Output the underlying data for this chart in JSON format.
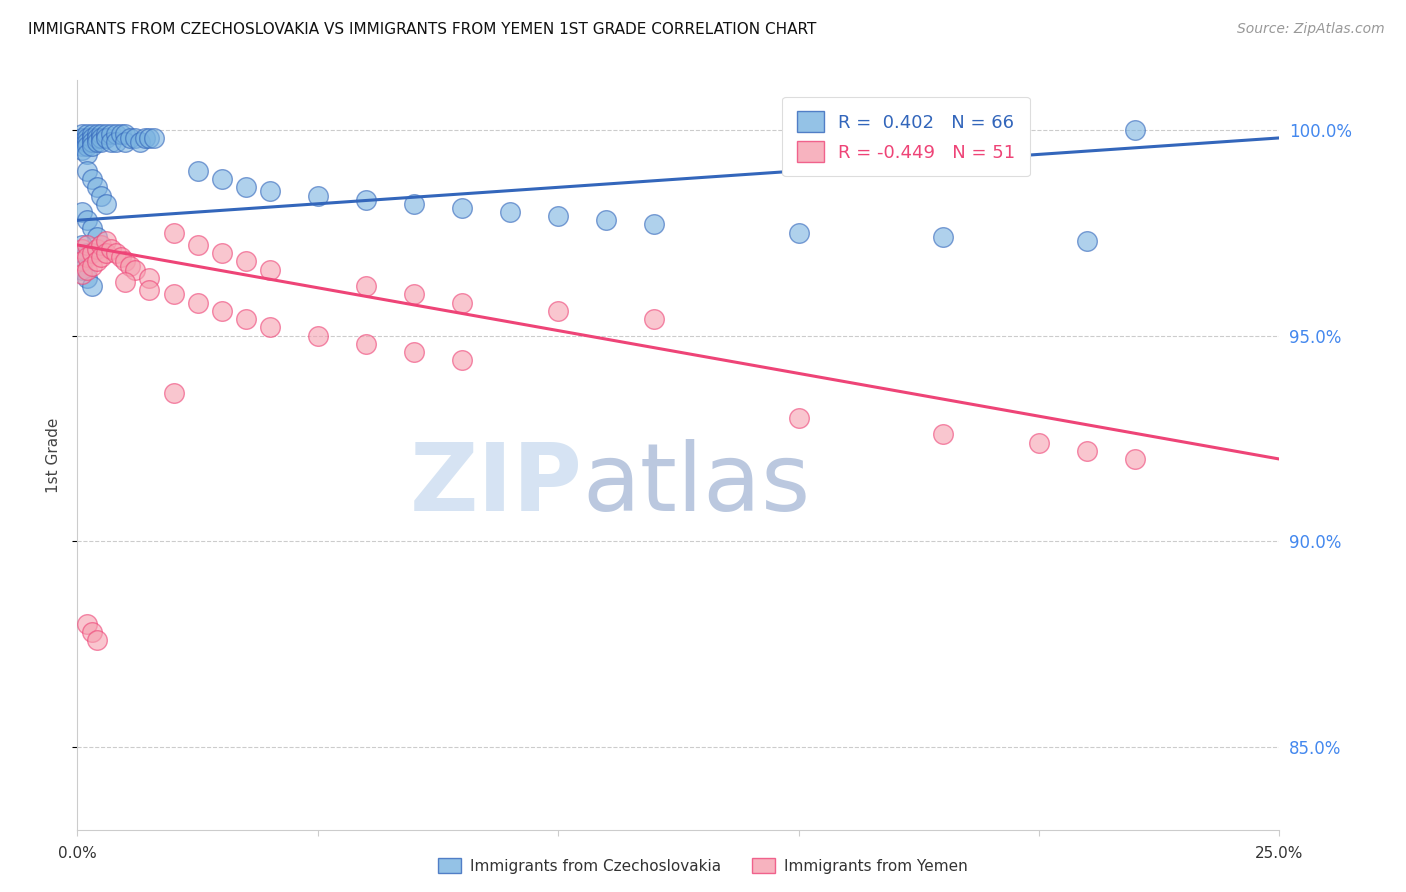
{
  "title": "IMMIGRANTS FROM CZECHOSLOVAKIA VS IMMIGRANTS FROM YEMEN 1ST GRADE CORRELATION CHART",
  "source": "Source: ZipAtlas.com",
  "ylabel": "1st Grade",
  "xlim": [
    0.0,
    0.25
  ],
  "ylim": [
    0.83,
    1.012
  ],
  "yticks": [
    0.85,
    0.9,
    0.95,
    1.0
  ],
  "ytick_labels": [
    "85.0%",
    "90.0%",
    "95.0%",
    "100.0%"
  ],
  "color_blue": "#7ab3e0",
  "color_pink": "#f5a0b0",
  "trendline_blue": "#3366bb",
  "trendline_pink": "#ee4477",
  "blue_scatter_x": [
    0.001,
    0.001,
    0.001,
    0.001,
    0.001,
    0.002,
    0.002,
    0.002,
    0.002,
    0.002,
    0.003,
    0.003,
    0.003,
    0.003,
    0.004,
    0.004,
    0.004,
    0.005,
    0.005,
    0.005,
    0.006,
    0.006,
    0.007,
    0.007,
    0.008,
    0.008,
    0.009,
    0.01,
    0.01,
    0.011,
    0.012,
    0.013,
    0.014,
    0.015,
    0.016,
    0.002,
    0.003,
    0.004,
    0.005,
    0.006,
    0.001,
    0.002,
    0.003,
    0.004,
    0.001,
    0.002,
    0.001,
    0.001,
    0.002,
    0.003,
    0.025,
    0.03,
    0.035,
    0.04,
    0.05,
    0.06,
    0.07,
    0.08,
    0.09,
    0.1,
    0.11,
    0.12,
    0.15,
    0.18,
    0.21,
    0.22
  ],
  "blue_scatter_y": [
    0.999,
    0.998,
    0.997,
    0.996,
    0.995,
    0.999,
    0.998,
    0.997,
    0.996,
    0.994,
    0.999,
    0.998,
    0.997,
    0.996,
    0.999,
    0.998,
    0.997,
    0.999,
    0.998,
    0.997,
    0.999,
    0.998,
    0.999,
    0.997,
    0.999,
    0.997,
    0.999,
    0.999,
    0.997,
    0.998,
    0.998,
    0.997,
    0.998,
    0.998,
    0.998,
    0.99,
    0.988,
    0.986,
    0.984,
    0.982,
    0.98,
    0.978,
    0.976,
    0.974,
    0.972,
    0.97,
    0.968,
    0.966,
    0.964,
    0.962,
    0.99,
    0.988,
    0.986,
    0.985,
    0.984,
    0.983,
    0.982,
    0.981,
    0.98,
    0.979,
    0.978,
    0.977,
    0.975,
    0.974,
    0.973,
    1.0
  ],
  "pink_scatter_x": [
    0.001,
    0.001,
    0.001,
    0.002,
    0.002,
    0.002,
    0.003,
    0.003,
    0.004,
    0.004,
    0.005,
    0.005,
    0.006,
    0.006,
    0.007,
    0.008,
    0.009,
    0.01,
    0.011,
    0.012,
    0.015,
    0.02,
    0.025,
    0.03,
    0.035,
    0.04,
    0.05,
    0.06,
    0.07,
    0.08,
    0.02,
    0.025,
    0.03,
    0.035,
    0.04,
    0.06,
    0.07,
    0.08,
    0.1,
    0.12,
    0.15,
    0.18,
    0.2,
    0.21,
    0.22,
    0.01,
    0.015,
    0.02,
    0.002,
    0.003,
    0.004
  ],
  "pink_scatter_y": [
    0.971,
    0.968,
    0.965,
    0.972,
    0.969,
    0.966,
    0.97,
    0.967,
    0.971,
    0.968,
    0.972,
    0.969,
    0.973,
    0.97,
    0.971,
    0.97,
    0.969,
    0.968,
    0.967,
    0.966,
    0.964,
    0.96,
    0.958,
    0.956,
    0.954,
    0.952,
    0.95,
    0.948,
    0.946,
    0.944,
    0.975,
    0.972,
    0.97,
    0.968,
    0.966,
    0.962,
    0.96,
    0.958,
    0.956,
    0.954,
    0.93,
    0.926,
    0.924,
    0.922,
    0.92,
    0.963,
    0.961,
    0.936,
    0.88,
    0.878,
    0.876
  ],
  "blue_trend_x": [
    0.0,
    0.25
  ],
  "blue_trend_y": [
    0.978,
    0.998
  ],
  "pink_trend_x": [
    0.0,
    0.25
  ],
  "pink_trend_y": [
    0.972,
    0.92
  ],
  "legend_label1": "Immigrants from Czechoslovakia",
  "legend_label2": "Immigrants from Yemen",
  "xtick_positions": [
    0.0,
    0.05,
    0.1,
    0.15,
    0.2,
    0.25
  ]
}
